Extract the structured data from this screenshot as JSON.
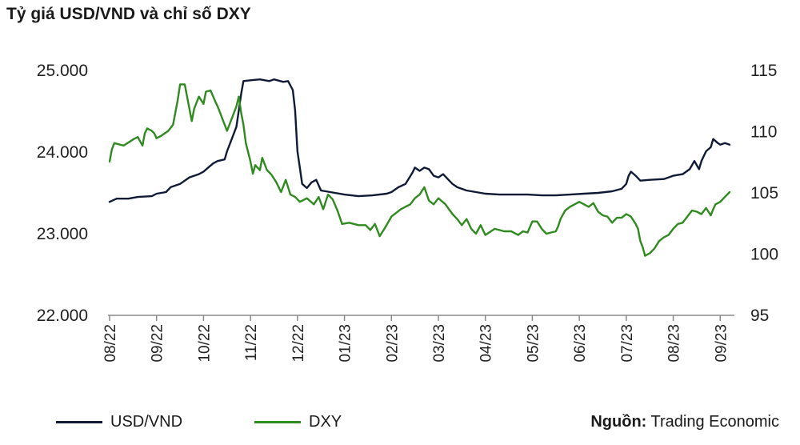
{
  "chart_data": {
    "type": "line",
    "title": "Tỷ giá USD/VND và chỉ số DXY",
    "y_left": {
      "ticks": [
        "25.000",
        "24.000",
        "23.000",
        "22.000"
      ],
      "values": [
        25000,
        24000,
        23000,
        22000
      ],
      "range": [
        22000,
        25000
      ]
    },
    "y_right": {
      "ticks": [
        "115",
        "110",
        "105",
        "100",
        "95"
      ],
      "values": [
        115,
        110,
        105,
        100,
        95
      ],
      "range": [
        95,
        115
      ]
    },
    "x_ticks": [
      "08/22",
      "09/22",
      "10/22",
      "11/22",
      "12/22",
      "01/23",
      "02/23",
      "03/23",
      "04/23",
      "05/23",
      "06/23",
      "07/23",
      "08/23",
      "09/23"
    ],
    "x_range_months": [
      0,
      13.2
    ],
    "series": [
      {
        "name": "USD/VND",
        "axis": "left",
        "color": "#0f1b36",
        "points": [
          [
            0.0,
            23380
          ],
          [
            0.15,
            23420
          ],
          [
            0.4,
            23420
          ],
          [
            0.6,
            23440
          ],
          [
            0.9,
            23450
          ],
          [
            1.0,
            23480
          ],
          [
            1.2,
            23500
          ],
          [
            1.3,
            23560
          ],
          [
            1.5,
            23600
          ],
          [
            1.7,
            23680
          ],
          [
            1.9,
            23720
          ],
          [
            2.0,
            23750
          ],
          [
            2.2,
            23850
          ],
          [
            2.3,
            23880
          ],
          [
            2.45,
            23900
          ],
          [
            2.5,
            24000
          ],
          [
            2.6,
            24150
          ],
          [
            2.7,
            24300
          ],
          [
            2.75,
            24500
          ],
          [
            2.8,
            24700
          ],
          [
            2.85,
            24860
          ],
          [
            3.0,
            24870
          ],
          [
            3.2,
            24880
          ],
          [
            3.4,
            24860
          ],
          [
            3.5,
            24880
          ],
          [
            3.7,
            24850
          ],
          [
            3.8,
            24860
          ],
          [
            3.9,
            24750
          ],
          [
            3.95,
            24500
          ],
          [
            4.0,
            24000
          ],
          [
            4.05,
            23800
          ],
          [
            4.1,
            23600
          ],
          [
            4.2,
            23550
          ],
          [
            4.3,
            23620
          ],
          [
            4.4,
            23650
          ],
          [
            4.5,
            23520
          ],
          [
            4.7,
            23500
          ],
          [
            5.0,
            23470
          ],
          [
            5.3,
            23450
          ],
          [
            5.6,
            23460
          ],
          [
            5.9,
            23480
          ],
          [
            6.0,
            23500
          ],
          [
            6.15,
            23560
          ],
          [
            6.3,
            23600
          ],
          [
            6.45,
            23740
          ],
          [
            6.5,
            23800
          ],
          [
            6.6,
            23760
          ],
          [
            6.7,
            23800
          ],
          [
            6.8,
            23780
          ],
          [
            6.9,
            23700
          ],
          [
            7.0,
            23680
          ],
          [
            7.1,
            23720
          ],
          [
            7.2,
            23660
          ],
          [
            7.3,
            23600
          ],
          [
            7.4,
            23560
          ],
          [
            7.6,
            23520
          ],
          [
            7.8,
            23500
          ],
          [
            8.0,
            23480
          ],
          [
            8.3,
            23470
          ],
          [
            8.6,
            23470
          ],
          [
            8.9,
            23470
          ],
          [
            9.2,
            23460
          ],
          [
            9.5,
            23460
          ],
          [
            9.8,
            23470
          ],
          [
            10.1,
            23480
          ],
          [
            10.4,
            23490
          ],
          [
            10.7,
            23510
          ],
          [
            10.9,
            23540
          ],
          [
            11.0,
            23600
          ],
          [
            11.05,
            23700
          ],
          [
            11.1,
            23750
          ],
          [
            11.2,
            23700
          ],
          [
            11.3,
            23640
          ],
          [
            11.5,
            23650
          ],
          [
            11.8,
            23660
          ],
          [
            12.0,
            23700
          ],
          [
            12.2,
            23720
          ],
          [
            12.35,
            23780
          ],
          [
            12.45,
            23880
          ],
          [
            12.55,
            23780
          ],
          [
            12.6,
            23880
          ],
          [
            12.7,
            24000
          ],
          [
            12.8,
            24050
          ],
          [
            12.85,
            24150
          ],
          [
            12.95,
            24100
          ],
          [
            13.0,
            24080
          ],
          [
            13.1,
            24100
          ],
          [
            13.2,
            24080
          ]
        ]
      },
      {
        "name": "DXY",
        "axis": "right",
        "color": "#2f8a1f",
        "points": [
          [
            0.0,
            107.5
          ],
          [
            0.05,
            108.5
          ],
          [
            0.1,
            109.0
          ],
          [
            0.3,
            108.8
          ],
          [
            0.5,
            109.3
          ],
          [
            0.6,
            109.5
          ],
          [
            0.7,
            108.8
          ],
          [
            0.75,
            109.8
          ],
          [
            0.8,
            110.2
          ],
          [
            0.9,
            110.0
          ],
          [
            0.95,
            109.8
          ],
          [
            1.0,
            109.4
          ],
          [
            1.1,
            109.6
          ],
          [
            1.25,
            110.0
          ],
          [
            1.35,
            110.5
          ],
          [
            1.4,
            111.5
          ],
          [
            1.45,
            112.5
          ],
          [
            1.5,
            113.8
          ],
          [
            1.6,
            113.8
          ],
          [
            1.7,
            111.8
          ],
          [
            1.75,
            110.8
          ],
          [
            1.8,
            111.8
          ],
          [
            1.9,
            112.8
          ],
          [
            2.0,
            112.2
          ],
          [
            2.05,
            113.2
          ],
          [
            2.15,
            113.3
          ],
          [
            2.25,
            112.4
          ],
          [
            2.3,
            112.0
          ],
          [
            2.35,
            111.5
          ],
          [
            2.4,
            111.0
          ],
          [
            2.5,
            110.0
          ],
          [
            2.6,
            111.0
          ],
          [
            2.7,
            112.0
          ],
          [
            2.75,
            112.8
          ],
          [
            2.8,
            111.5
          ],
          [
            2.85,
            110.5
          ],
          [
            2.9,
            109.0
          ],
          [
            3.0,
            107.5
          ],
          [
            3.05,
            106.5
          ],
          [
            3.1,
            107.2
          ],
          [
            3.2,
            106.8
          ],
          [
            3.25,
            107.8
          ],
          [
            3.35,
            106.8
          ],
          [
            3.45,
            106.4
          ],
          [
            3.55,
            105.8
          ],
          [
            3.65,
            105.0
          ],
          [
            3.75,
            106.0
          ],
          [
            3.85,
            104.8
          ],
          [
            3.95,
            104.6
          ],
          [
            4.05,
            104.2
          ],
          [
            4.2,
            104.5
          ],
          [
            4.35,
            104.0
          ],
          [
            4.45,
            104.6
          ],
          [
            4.55,
            103.6
          ],
          [
            4.65,
            104.8
          ],
          [
            4.75,
            104.4
          ],
          [
            4.85,
            103.5
          ],
          [
            4.95,
            102.4
          ],
          [
            5.1,
            102.5
          ],
          [
            5.3,
            102.3
          ],
          [
            5.45,
            102.3
          ],
          [
            5.55,
            101.9
          ],
          [
            5.65,
            102.4
          ],
          [
            5.75,
            101.4
          ],
          [
            5.85,
            102.0
          ],
          [
            6.0,
            103.0
          ],
          [
            6.2,
            103.6
          ],
          [
            6.4,
            104.0
          ],
          [
            6.5,
            104.5
          ],
          [
            6.6,
            104.8
          ],
          [
            6.7,
            105.4
          ],
          [
            6.8,
            104.3
          ],
          [
            6.9,
            104.0
          ],
          [
            7.0,
            104.5
          ],
          [
            7.15,
            104.0
          ],
          [
            7.3,
            103.2
          ],
          [
            7.4,
            102.8
          ],
          [
            7.5,
            102.3
          ],
          [
            7.6,
            102.8
          ],
          [
            7.7,
            102.0
          ],
          [
            7.8,
            101.6
          ],
          [
            7.9,
            102.3
          ],
          [
            8.0,
            101.5
          ],
          [
            8.2,
            102.0
          ],
          [
            8.4,
            101.8
          ],
          [
            8.55,
            101.8
          ],
          [
            8.7,
            101.5
          ],
          [
            8.8,
            101.8
          ],
          [
            8.9,
            101.7
          ],
          [
            9.0,
            102.6
          ],
          [
            9.1,
            102.6
          ],
          [
            9.2,
            102.0
          ],
          [
            9.3,
            101.6
          ],
          [
            9.5,
            101.8
          ],
          [
            9.55,
            102.2
          ],
          [
            9.6,
            102.8
          ],
          [
            9.7,
            103.5
          ],
          [
            9.8,
            103.8
          ],
          [
            9.9,
            104.0
          ],
          [
            10.0,
            104.2
          ],
          [
            10.1,
            104.0
          ],
          [
            10.2,
            103.8
          ],
          [
            10.3,
            104.1
          ],
          [
            10.4,
            103.4
          ],
          [
            10.5,
            103.1
          ],
          [
            10.6,
            103.0
          ],
          [
            10.7,
            102.5
          ],
          [
            10.8,
            102.9
          ],
          [
            10.9,
            102.9
          ],
          [
            11.0,
            103.2
          ],
          [
            11.1,
            103.0
          ],
          [
            11.2,
            102.4
          ],
          [
            11.25,
            102.0
          ],
          [
            11.3,
            101.0
          ],
          [
            11.35,
            100.5
          ],
          [
            11.4,
            99.8
          ],
          [
            11.5,
            100.0
          ],
          [
            11.6,
            100.4
          ],
          [
            11.7,
            101.0
          ],
          [
            11.8,
            101.3
          ],
          [
            11.9,
            101.5
          ],
          [
            12.0,
            102.0
          ],
          [
            12.1,
            102.4
          ],
          [
            12.2,
            102.5
          ],
          [
            12.3,
            103.0
          ],
          [
            12.4,
            103.5
          ],
          [
            12.5,
            103.4
          ],
          [
            12.6,
            103.2
          ],
          [
            12.7,
            103.7
          ],
          [
            12.8,
            103.1
          ],
          [
            12.85,
            103.6
          ],
          [
            12.9,
            104.0
          ],
          [
            13.0,
            104.2
          ],
          [
            13.1,
            104.6
          ],
          [
            13.2,
            105.0
          ]
        ]
      }
    ],
    "legend": [
      {
        "label": "USD/VND",
        "color": "#0f1b36"
      },
      {
        "label": "DXY",
        "color": "#2f8a1f"
      }
    ],
    "legend_position": "bottom-left",
    "grid": false
  },
  "source": {
    "label": "Nguồn:",
    "text": "Trading Economic"
  }
}
